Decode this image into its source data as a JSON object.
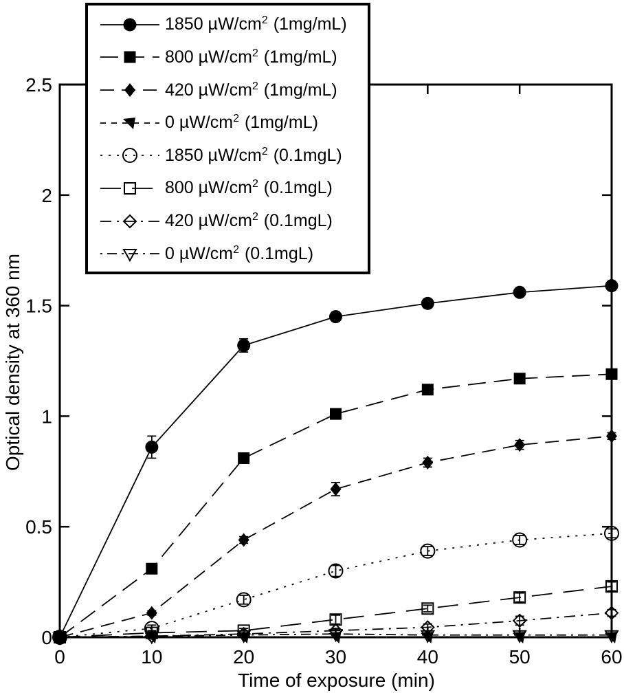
{
  "chart_data": {
    "type": "line",
    "title": "",
    "xlabel": "Time of exposure (min)",
    "ylabel": "Optical density at 360 nm",
    "xlim": [
      0,
      60
    ],
    "ylim": [
      0,
      2.5
    ],
    "xticks": [
      "0",
      "10",
      "20",
      "30",
      "40",
      "50",
      "60"
    ],
    "yticks": [
      "0",
      "0.5",
      "1",
      "1.5",
      "2",
      "2.5"
    ],
    "grid": false,
    "legend_position": "top-left",
    "frame": true,
    "line_color": "#000000",
    "x": [
      0,
      10,
      20,
      30,
      40,
      50,
      60
    ],
    "series": [
      {
        "name": "1850 µW/cm² (1mg/mL)",
        "label_base": "1850 µW/cm",
        "label_sup": "2",
        "label_tail": " (1mg/mL)",
        "marker": "circle-filled",
        "line": "solid",
        "values": [
          0,
          0.86,
          1.32,
          1.45,
          1.51,
          1.56,
          1.59
        ],
        "errors": [
          0,
          0.05,
          0.03,
          0.02,
          0.015,
          0.015,
          0.015
        ]
      },
      {
        "name": "800 µW/cm² (1mg/mL)",
        "label_base": "800 µW/cm",
        "label_sup": "2",
        "label_tail": " (1mg/mL)",
        "marker": "square-filled",
        "line": "dash-long",
        "values": [
          0,
          0.31,
          0.81,
          1.01,
          1.12,
          1.17,
          1.19
        ],
        "errors": [
          0,
          0.01,
          0.015,
          0.02,
          0.015,
          0.015,
          0.02
        ]
      },
      {
        "name": "420 µW/cm² (1mg/mL)",
        "label_base": "420 µW/cm",
        "label_sup": "2",
        "label_tail": " (1mg/mL)",
        "marker": "diamond-filled",
        "line": "dash",
        "values": [
          0,
          0.11,
          0.44,
          0.67,
          0.79,
          0.87,
          0.91
        ],
        "errors": [
          0,
          0.01,
          0.015,
          0.03,
          0.02,
          0.02,
          0.015
        ]
      },
      {
        "name": "0 µW/cm² (1mg/mL)",
        "label_base": "0 µW/cm",
        "label_sup": "2",
        "label_tail": " (1mg/mL)",
        "marker": "triangle-left-filled",
        "line": "dash-short",
        "values": [
          0,
          0,
          0,
          0,
          0,
          0,
          0
        ],
        "errors": [
          0,
          0,
          0,
          0,
          0,
          0,
          0
        ]
      },
      {
        "name": "1850 µW/cm² (0.1mgL)",
        "label_base": "1850 µW/cm",
        "label_sup": "2",
        "label_tail": " (0.1mgL)",
        "marker": "circle-open",
        "line": "dot",
        "values": [
          0,
          0.04,
          0.17,
          0.3,
          0.39,
          0.44,
          0.47
        ],
        "errors": [
          0,
          0.015,
          0.02,
          0.025,
          0.02,
          0.02,
          0.02
        ]
      },
      {
        "name": "800 µW/cm² (0.1mgL)",
        "label_base": "800 µW/cm",
        "label_sup": "2",
        "label_tail": " (0.1mgL)",
        "marker": "square-open",
        "line": "dash-xlong",
        "values": [
          0,
          0.02,
          0.03,
          0.08,
          0.13,
          0.18,
          0.23
        ],
        "errors": [
          0,
          0.01,
          0.01,
          0.02,
          0.015,
          0.02,
          0.02
        ]
      },
      {
        "name": "420 µW/cm² (0.1mgL)",
        "label_base": "420 µW/cm",
        "label_sup": "2",
        "label_tail": " (0.1mgL)",
        "marker": "diamond-open",
        "line": "dash-dot",
        "values": [
          0,
          0.005,
          0.015,
          0.03,
          0.045,
          0.075,
          0.11
        ],
        "errors": [
          0,
          0,
          0.005,
          0.01,
          0.015,
          0.02,
          0.015
        ]
      },
      {
        "name": "0 µW/cm² (0.1mgL)",
        "label_base": "0 µW/cm",
        "label_sup": "2",
        "label_tail": " (0.1mgL)",
        "marker": "triangle-down-open",
        "line": "dot-dash",
        "values": [
          0,
          0.005,
          0.01,
          0.015,
          0.01,
          0.01,
          0.01
        ],
        "errors": [
          0,
          0,
          0,
          0.015,
          0.01,
          0.01,
          0.01
        ]
      }
    ]
  }
}
